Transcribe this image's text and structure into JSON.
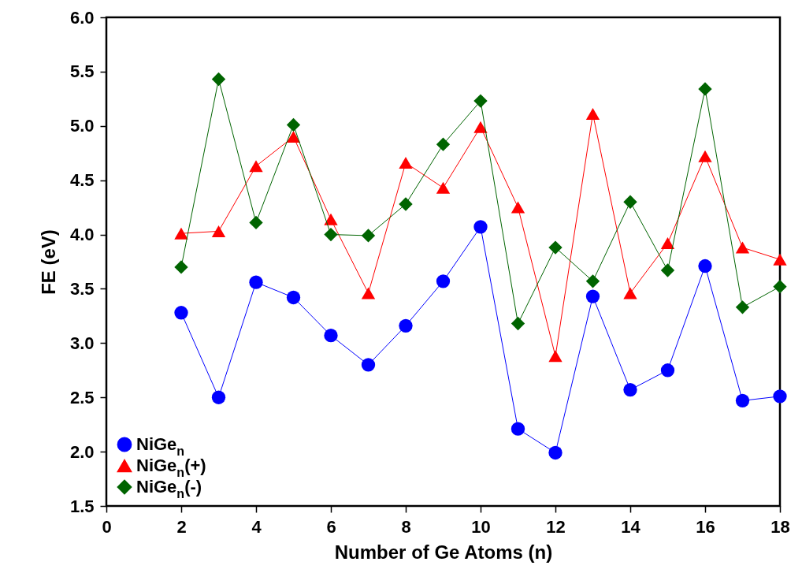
{
  "chart_data": {
    "type": "line",
    "xlabel": "Number of Ge Atoms (n)",
    "ylabel": "FE (eV)",
    "x": [
      2,
      3,
      4,
      5,
      6,
      7,
      8,
      9,
      10,
      11,
      12,
      13,
      14,
      15,
      16,
      17,
      18
    ],
    "series": [
      {
        "name": "NiGe$_{n}$",
        "color": "#0000ff",
        "marker": "circle",
        "values": [
          3.28,
          2.5,
          3.56,
          3.42,
          3.07,
          2.8,
          3.16,
          3.57,
          4.07,
          2.21,
          1.99,
          3.43,
          2.57,
          2.75,
          3.71,
          2.47,
          2.51
        ]
      },
      {
        "name": "NiGe$_{n}$(+)",
        "color": "#ff0000",
        "marker": "triangle",
        "values": [
          4.01,
          4.03,
          4.63,
          4.9,
          4.14,
          3.46,
          4.66,
          4.43,
          4.99,
          4.25,
          2.88,
          5.11,
          3.46,
          3.92,
          4.72,
          3.88,
          3.77
        ]
      },
      {
        "name": "NiGe$_{n}$(-)",
        "color": "#006400",
        "marker": "diamond",
        "values": [
          3.7,
          5.43,
          4.11,
          5.01,
          4.0,
          3.99,
          4.28,
          4.83,
          5.23,
          3.18,
          3.88,
          3.57,
          4.3,
          3.67,
          5.34,
          3.33,
          3.52
        ]
      }
    ],
    "xlim": [
      0,
      18
    ],
    "xticks": [
      0,
      2,
      4,
      6,
      8,
      10,
      12,
      14,
      16,
      18
    ],
    "ylim": [
      1.5,
      6.0
    ],
    "yticks": [
      {
        "value": 1.5,
        "label": "1.5"
      },
      {
        "value": 2,
        "label": "2.0"
      },
      {
        "value": 2.5,
        "label": "2.5"
      },
      {
        "value": 3,
        "label": "3.0"
      },
      {
        "value": 3.5,
        "label": "3.5"
      },
      {
        "value": 4,
        "label": "4.0"
      },
      {
        "value": 4.5,
        "label": "4.5"
      },
      {
        "value": 5,
        "label": "5.0"
      },
      {
        "value": 5.5,
        "label": "5.5"
      },
      {
        "value": 6,
        "label": "6.0"
      }
    ],
    "grid": false,
    "legend": "bottom left",
    "line_style": "solid"
  }
}
